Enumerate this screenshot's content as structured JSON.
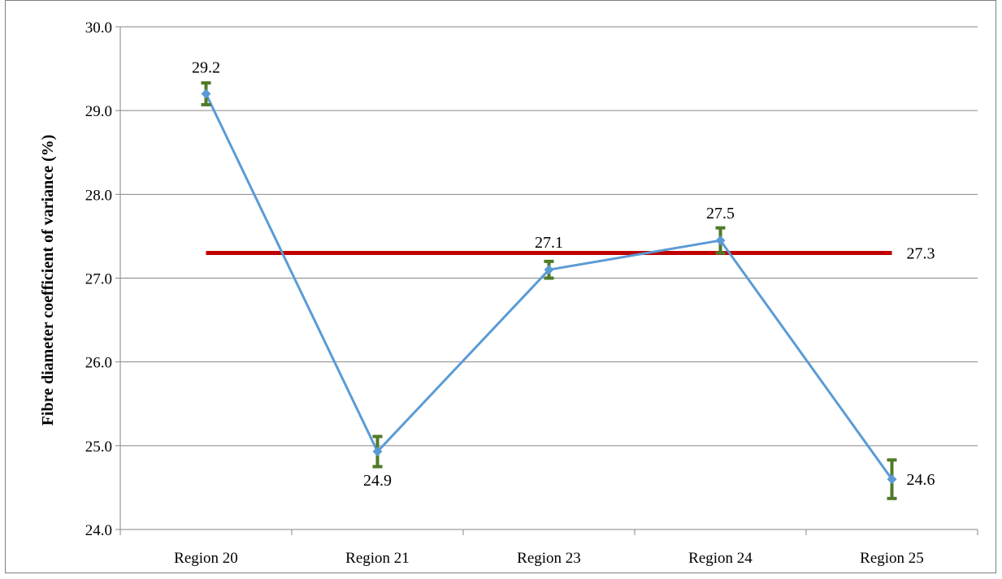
{
  "chart_data": {
    "type": "line",
    "title": "",
    "xlabel": "",
    "ylabel": "Fibre diameter coefficient of variance (%)",
    "ylim": [
      24.0,
      30.0
    ],
    "y_ticks": [
      "24.0",
      "25.0",
      "26.0",
      "27.0",
      "28.0",
      "29.0",
      "30.0"
    ],
    "categories": [
      "Region 20",
      "Region 21",
      "Region 23",
      "Region 24",
      "Region 25"
    ],
    "grid": "horizontal",
    "series": [
      {
        "values": [
          29.2,
          24.93,
          27.1,
          27.45,
          24.6
        ],
        "error": [
          0.13,
          0.18,
          0.1,
          0.15,
          0.23
        ],
        "data_labels": [
          "29.2",
          "24.9",
          "27.1",
          "27.5",
          "24.6"
        ],
        "color": "#5b9bd5",
        "error_color": "#4f7a28"
      }
    ],
    "reference_line": {
      "value": 27.3,
      "label": "27.3",
      "color": "#c00000"
    }
  }
}
